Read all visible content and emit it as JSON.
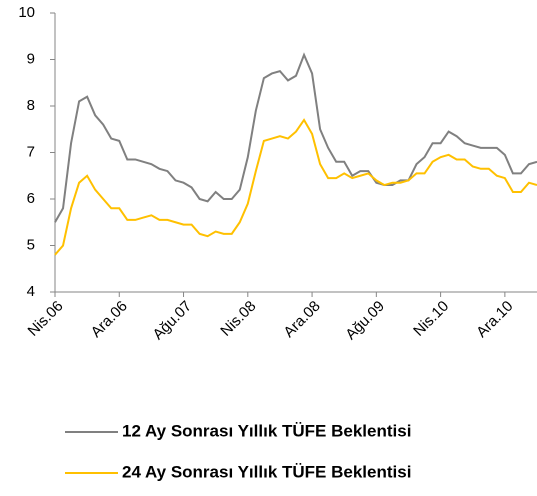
{
  "chart_data": {
    "type": "line",
    "categories": [
      "Nis.06",
      null,
      null,
      null,
      null,
      null,
      null,
      null,
      "Ara.06",
      null,
      null,
      null,
      null,
      null,
      null,
      null,
      "Ağu.07",
      null,
      null,
      null,
      null,
      null,
      null,
      null,
      "Nis.08",
      null,
      null,
      null,
      null,
      null,
      null,
      null,
      "Ara.08",
      null,
      null,
      null,
      null,
      null,
      null,
      null,
      "Ağu.09",
      null,
      null,
      null,
      null,
      null,
      null,
      null,
      "Nis.10",
      null,
      null,
      null,
      null,
      null,
      null,
      null,
      "Ara.10",
      null,
      null,
      null,
      null
    ],
    "series": [
      {
        "name": "12 Ay Sonrası Yıllık TÜFE Beklentisi",
        "color": "#808080",
        "values": [
          5.5,
          5.8,
          7.2,
          8.1,
          8.2,
          7.8,
          7.6,
          7.3,
          7.25,
          6.85,
          6.85,
          6.8,
          6.75,
          6.65,
          6.6,
          6.4,
          6.35,
          6.25,
          6.0,
          5.95,
          6.15,
          6.0,
          6.0,
          6.2,
          6.9,
          7.9,
          8.6,
          8.7,
          8.75,
          8.55,
          8.65,
          9.1,
          8.7,
          7.5,
          7.1,
          6.8,
          6.8,
          6.5,
          6.6,
          6.6,
          6.35,
          6.3,
          6.3,
          6.4,
          6.4,
          6.75,
          6.9,
          7.2,
          7.2,
          7.45,
          7.35,
          7.2,
          7.15,
          7.1,
          7.1,
          7.1,
          6.95,
          6.55,
          6.55,
          6.75,
          6.8
        ]
      },
      {
        "name": "24 Ay Sonrası Yıllık TÜFE Beklentisi",
        "color": "#ffc000",
        "values": [
          4.8,
          5.0,
          5.8,
          6.35,
          6.5,
          6.2,
          6.0,
          5.8,
          5.8,
          5.55,
          5.55,
          5.6,
          5.65,
          5.55,
          5.55,
          5.5,
          5.45,
          5.45,
          5.25,
          5.2,
          5.3,
          5.25,
          5.25,
          5.5,
          5.9,
          6.6,
          7.25,
          7.3,
          7.35,
          7.3,
          7.45,
          7.7,
          7.4,
          6.75,
          6.45,
          6.45,
          6.55,
          6.45,
          6.5,
          6.55,
          6.4,
          6.3,
          6.35,
          6.35,
          6.4,
          6.55,
          6.55,
          6.8,
          6.9,
          6.95,
          6.85,
          6.85,
          6.7,
          6.65,
          6.65,
          6.5,
          6.45,
          6.15,
          6.15,
          6.35,
          6.3
        ]
      }
    ],
    "ylim": [
      4,
      10
    ],
    "yticks": [
      4,
      5,
      6,
      7,
      8,
      9,
      10
    ],
    "grid": false
  }
}
